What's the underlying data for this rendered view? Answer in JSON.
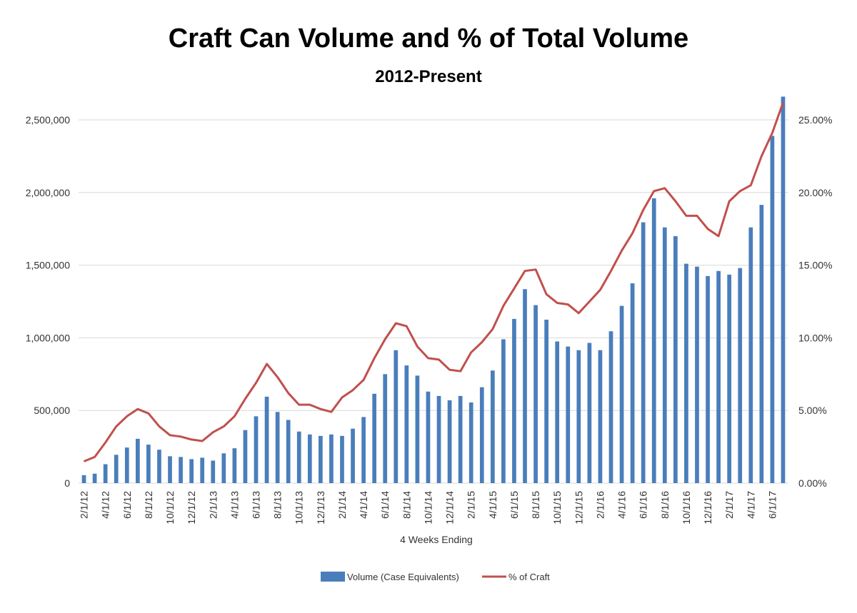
{
  "chart_data": {
    "type": "bar+line",
    "title": "Craft Can Volume and % of Total Volume",
    "subtitle": "2012-Present",
    "xlabel": "4 Weeks Ending",
    "y_left": {
      "ylim": [
        0,
        2500000
      ],
      "ticks": [
        0,
        500000,
        1000000,
        1500000,
        2000000,
        2500000
      ],
      "tick_labels": [
        "0",
        "500,000",
        "1,000,000",
        "1,500,000",
        "2,000,000",
        "2,500,000"
      ]
    },
    "y_right": {
      "ylim": [
        0,
        25
      ],
      "ticks": [
        0,
        5,
        10,
        15,
        20,
        25
      ],
      "tick_labels": [
        "0.00%",
        "5.00%",
        "10.00%",
        "15.00%",
        "20.00%",
        "25.00%"
      ]
    },
    "grid": true,
    "legend_position": "bottom",
    "colors": {
      "bar": "#4a7ebb",
      "line": "#c0504d",
      "grid": "#d9d9d9"
    },
    "x_tick_labels": [
      "2/1/12",
      "4/1/12",
      "6/1/12",
      "8/1/12",
      "10/1/12",
      "12/1/12",
      "2/1/13",
      "4/1/13",
      "6/1/13",
      "8/1/13",
      "10/1/13",
      "12/1/13",
      "2/1/14",
      "4/1/14",
      "6/1/14",
      "8/1/14",
      "10/1/14",
      "12/1/14",
      "2/1/15",
      "4/1/15",
      "6/1/15",
      "8/1/15",
      "10/1/15",
      "12/1/15",
      "2/1/16",
      "4/1/16",
      "6/1/16",
      "8/1/16",
      "10/1/16",
      "12/1/16",
      "2/1/17",
      "4/1/17",
      "6/1/17"
    ],
    "series": [
      {
        "name": "Volume (Case Equivalents)",
        "kind": "bar",
        "axis": "left",
        "values": [
          55000,
          65000,
          130000,
          195000,
          245000,
          305000,
          265000,
          230000,
          185000,
          180000,
          165000,
          175000,
          155000,
          205000,
          240000,
          365000,
          460000,
          595000,
          490000,
          435000,
          355000,
          335000,
          325000,
          335000,
          325000,
          375000,
          455000,
          615000,
          750000,
          915000,
          810000,
          740000,
          630000,
          600000,
          570000,
          600000,
          555000,
          660000,
          775000,
          990000,
          1130000,
          1335000,
          1225000,
          1125000,
          975000,
          940000,
          915000,
          965000,
          915000,
          1045000,
          1220000,
          1375000,
          1795000,
          1960000,
          1760000,
          1700000,
          1510000,
          1490000,
          1425000,
          1460000,
          1435000,
          1480000,
          1760000,
          1915000,
          2390000,
          2660000
        ]
      },
      {
        "name": "% of Craft",
        "kind": "line",
        "axis": "right",
        "values": [
          1.5,
          1.8,
          2.8,
          3.9,
          4.6,
          5.1,
          4.8,
          3.9,
          3.3,
          3.2,
          3.0,
          2.9,
          3.5,
          3.9,
          4.6,
          5.8,
          6.9,
          8.2,
          7.3,
          6.2,
          5.4,
          5.4,
          5.1,
          4.9,
          5.9,
          6.4,
          7.1,
          8.6,
          9.9,
          11.0,
          10.8,
          9.4,
          8.6,
          8.5,
          7.8,
          7.7,
          9.0,
          9.7,
          10.6,
          12.2,
          13.4,
          14.6,
          14.7,
          13.0,
          12.4,
          12.3,
          11.7,
          12.5,
          13.3,
          14.6,
          16.0,
          17.2,
          18.8,
          20.1,
          20.3,
          19.4,
          18.4,
          18.4,
          17.5,
          17.0,
          19.4,
          20.1,
          20.5,
          22.5,
          24.1,
          26.2
        ]
      }
    ]
  }
}
